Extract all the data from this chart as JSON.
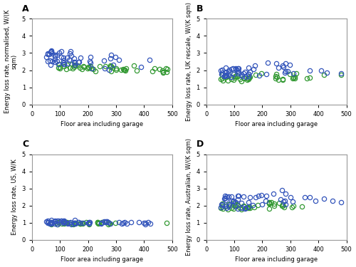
{
  "subplots": [
    {
      "label": "A",
      "ylabel": "Energy loss rate, normalised, W/(K\nsqm)",
      "xlabel": "Floor area including garage",
      "ylim": [
        0,
        5
      ],
      "xlim": [
        0,
        500
      ],
      "yticks": [
        0,
        1,
        2,
        3,
        4,
        5
      ],
      "xticks": [
        0,
        100,
        200,
        300,
        400,
        500
      ]
    },
    {
      "label": "B",
      "ylabel": "Energy loss rate, UK rescale, W/(K sqm)",
      "xlabel": "Floor area including garage",
      "ylim": [
        0,
        5
      ],
      "xlim": [
        0,
        500
      ],
      "yticks": [
        0,
        1,
        2,
        3,
        4,
        5
      ],
      "xticks": [
        0,
        100,
        200,
        300,
        400,
        500
      ]
    },
    {
      "label": "C",
      "ylabel": "Energy loss rate, US, W/K",
      "xlabel": "Floor area including garage",
      "ylim": [
        0,
        5
      ],
      "xlim": [
        0,
        500
      ],
      "yticks": [
        0,
        1,
        2,
        3,
        4,
        5
      ],
      "xticks": [
        0,
        100,
        200,
        300,
        400,
        500
      ]
    },
    {
      "label": "D",
      "ylabel": "Energy loss rate, Australian, W/(K sqm)",
      "xlabel": "Floor area including garage",
      "ylim": [
        0,
        5
      ],
      "xlim": [
        0,
        500
      ],
      "yticks": [
        0,
        1,
        2,
        3,
        4,
        5
      ],
      "xticks": [
        0,
        100,
        200,
        300,
        400,
        500
      ]
    }
  ],
  "blue_color": "#3355bb",
  "green_color": "#339933",
  "marker_size": 4.5,
  "marker_lw": 0.9,
  "spine_color": "#999999",
  "tick_label_size": 6,
  "axis_label_size": 6,
  "label_fontsize": 9
}
